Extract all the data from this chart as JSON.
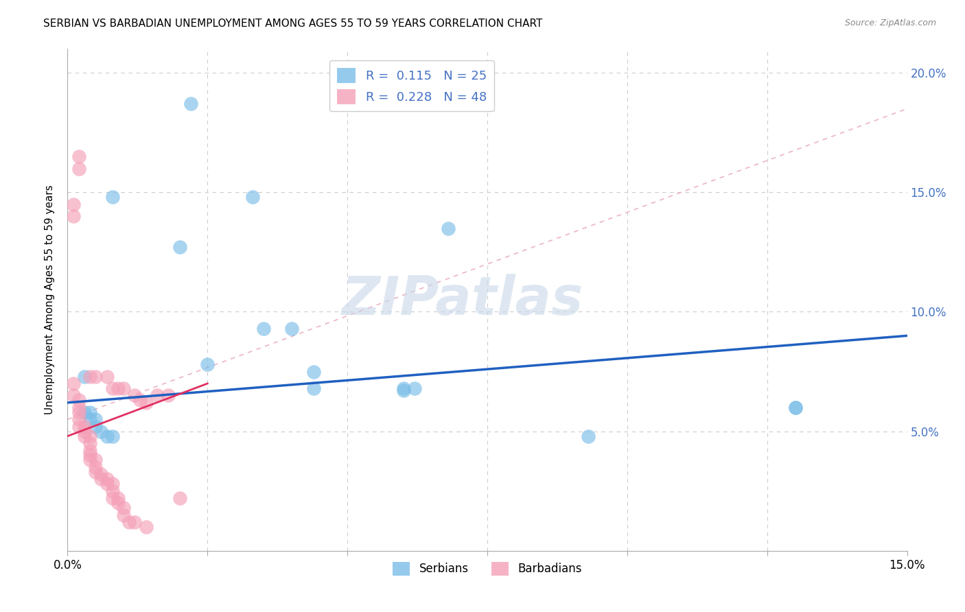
{
  "title": "SERBIAN VS BARBADIAN UNEMPLOYMENT AMONG AGES 55 TO 59 YEARS CORRELATION CHART",
  "source": "Source: ZipAtlas.com",
  "ylabel": "Unemployment Among Ages 55 to 59 years",
  "xlim": [
    0.0,
    0.15
  ],
  "ylim": [
    0.0,
    0.21
  ],
  "watermark": "ZIPatlas",
  "serbian_color": "#7bbde8",
  "barbadian_color": "#f4a0b8",
  "serbian_line_color": "#2060c0",
  "barbadian_line_color": "#e03060",
  "serbian_R": 0.115,
  "serbian_N": 25,
  "barbadian_R": 0.228,
  "barbadian_N": 48,
  "serbian_scatter": [
    [
      0.022,
      0.187
    ],
    [
      0.008,
      0.148
    ],
    [
      0.033,
      0.148
    ],
    [
      0.02,
      0.127
    ],
    [
      0.04,
      0.093
    ],
    [
      0.068,
      0.135
    ],
    [
      0.003,
      0.073
    ],
    [
      0.025,
      0.078
    ],
    [
      0.044,
      0.075
    ],
    [
      0.044,
      0.068
    ],
    [
      0.035,
      0.093
    ],
    [
      0.13,
      0.06
    ],
    [
      0.093,
      0.048
    ],
    [
      0.06,
      0.067
    ],
    [
      0.06,
      0.068
    ],
    [
      0.062,
      0.068
    ],
    [
      0.003,
      0.058
    ],
    [
      0.004,
      0.058
    ],
    [
      0.004,
      0.055
    ],
    [
      0.005,
      0.055
    ],
    [
      0.005,
      0.052
    ],
    [
      0.006,
      0.05
    ],
    [
      0.007,
      0.048
    ],
    [
      0.008,
      0.048
    ],
    [
      0.13,
      0.06
    ]
  ],
  "barbadian_scatter": [
    [
      0.001,
      0.145
    ],
    [
      0.001,
      0.14
    ],
    [
      0.002,
      0.165
    ],
    [
      0.002,
      0.16
    ],
    [
      0.004,
      0.073
    ],
    [
      0.005,
      0.073
    ],
    [
      0.007,
      0.073
    ],
    [
      0.008,
      0.068
    ],
    [
      0.009,
      0.068
    ],
    [
      0.01,
      0.068
    ],
    [
      0.012,
      0.065
    ],
    [
      0.013,
      0.063
    ],
    [
      0.014,
      0.062
    ],
    [
      0.016,
      0.065
    ],
    [
      0.018,
      0.065
    ],
    [
      0.001,
      0.07
    ],
    [
      0.001,
      0.065
    ],
    [
      0.002,
      0.063
    ],
    [
      0.002,
      0.06
    ],
    [
      0.002,
      0.058
    ],
    [
      0.002,
      0.055
    ],
    [
      0.002,
      0.052
    ],
    [
      0.003,
      0.052
    ],
    [
      0.003,
      0.05
    ],
    [
      0.003,
      0.048
    ],
    [
      0.004,
      0.048
    ],
    [
      0.004,
      0.045
    ],
    [
      0.004,
      0.042
    ],
    [
      0.004,
      0.04
    ],
    [
      0.004,
      0.038
    ],
    [
      0.005,
      0.038
    ],
    [
      0.005,
      0.035
    ],
    [
      0.005,
      0.033
    ],
    [
      0.006,
      0.032
    ],
    [
      0.006,
      0.03
    ],
    [
      0.007,
      0.03
    ],
    [
      0.007,
      0.028
    ],
    [
      0.008,
      0.028
    ],
    [
      0.008,
      0.025
    ],
    [
      0.008,
      0.022
    ],
    [
      0.009,
      0.022
    ],
    [
      0.009,
      0.02
    ],
    [
      0.01,
      0.018
    ],
    [
      0.01,
      0.015
    ],
    [
      0.011,
      0.012
    ],
    [
      0.012,
      0.012
    ],
    [
      0.014,
      0.01
    ],
    [
      0.02,
      0.022
    ]
  ],
  "serbian_line": {
    "x0": 0.0,
    "y0": 0.062,
    "x1": 0.15,
    "y1": 0.09
  },
  "barbadian_line": {
    "x0": 0.0,
    "y0": 0.048,
    "x1": 0.025,
    "y1": 0.07
  },
  "dashed_line": {
    "x0": 0.0,
    "y0": 0.055,
    "x1": 0.15,
    "y1": 0.185
  }
}
